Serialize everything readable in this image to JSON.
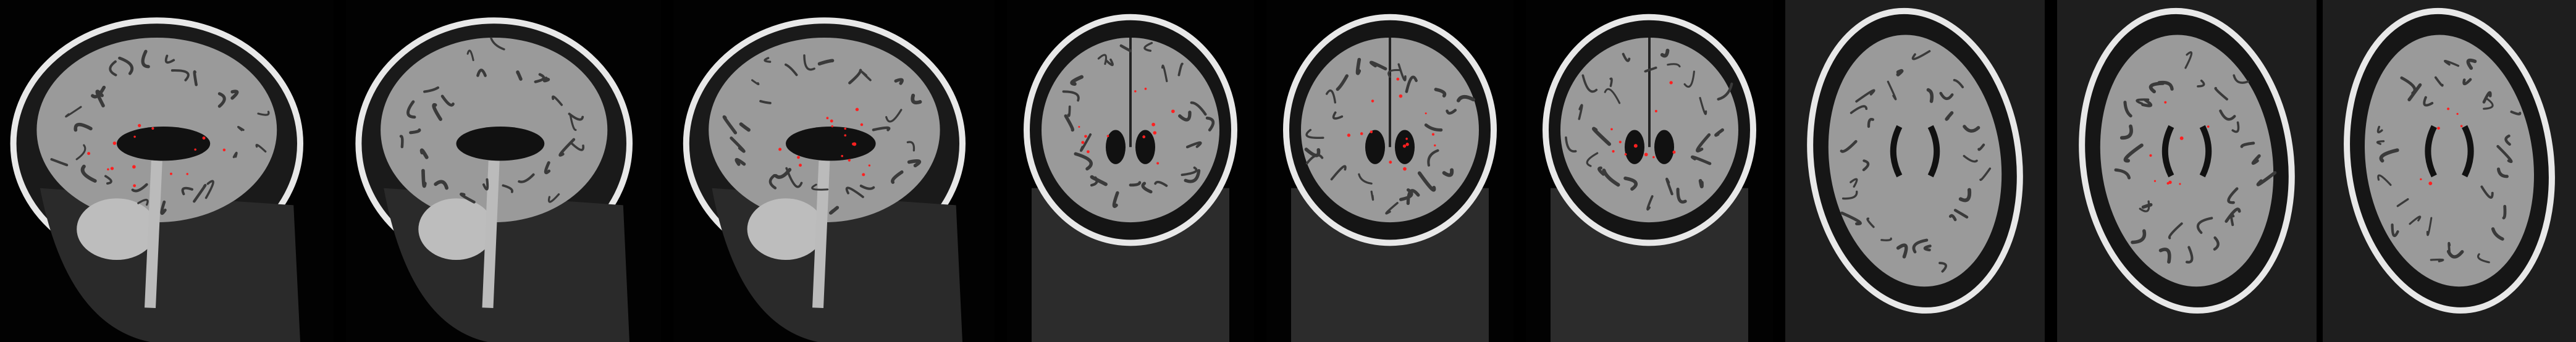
{
  "image": {
    "background_color": "#000000",
    "tissue_light_color": "#e8e8e8",
    "tissue_mid_color": "#9a9a9a",
    "tissue_dark_color": "#3a3a3a",
    "lesion_color": "#ff2020"
  },
  "panels": [
    {
      "plane": "sagittal",
      "lesions": 14
    },
    {
      "plane": "sagittal",
      "lesions": 0
    },
    {
      "plane": "sagittal",
      "lesions": 16
    },
    {
      "plane": "coronal",
      "lesions": 12
    },
    {
      "plane": "coronal",
      "lesions": 14
    },
    {
      "plane": "coronal",
      "lesions": 10
    },
    {
      "plane": "axial",
      "lesions": 0
    },
    {
      "plane": "axial",
      "lesions": 8
    },
    {
      "plane": "axial",
      "lesions": 6
    }
  ]
}
